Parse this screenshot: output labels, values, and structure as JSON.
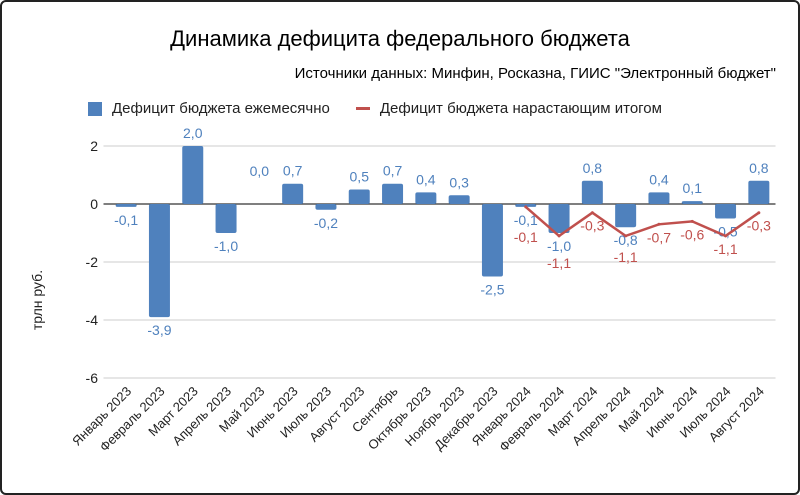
{
  "chart_data": {
    "type": "bar+line",
    "title": "Динамика дефицита федерального бюджета",
    "subtitle": "Источники данных: Минфин, Росказна, ГИИС \"Электронный бюджет\"",
    "ylabel": "трлн руб.",
    "ylim": [
      -6,
      2
    ],
    "yticks": [
      "2",
      "0",
      "-2",
      "-4",
      "-6"
    ],
    "ytick_values": [
      2,
      0,
      -2,
      -4,
      -6
    ],
    "grid": true,
    "legend_position": "top",
    "categories": [
      "Январь 2023",
      "Февраль 2023",
      "Март 2023",
      "Апрель 2023",
      "Май 2023",
      "Июнь 2023",
      "Июль 2023",
      "Август 2023",
      "Сентябрь",
      "Октябрь 2023",
      "Ноябрь 2023",
      "Декабрь 2023",
      "Январь 2024",
      "Февраль 2024",
      "Март 2024",
      "Апрель 2024",
      "Май 2024",
      "Июнь 2024",
      "Июль 2024",
      "Август 2024"
    ],
    "series": [
      {
        "name": "Дефицит бюджета ежемесячно",
        "type": "bar",
        "color": "#4f81bd",
        "values": [
          -0.1,
          -3.9,
          2.0,
          -1.0,
          0.0,
          0.7,
          -0.2,
          0.5,
          0.7,
          0.4,
          0.3,
          -2.5,
          -0.1,
          -1.0,
          0.8,
          -0.8,
          0.4,
          0.1,
          -0.5,
          0.8
        ],
        "labels": [
          "-0,1",
          "-3,9",
          "2,0",
          "-1,0",
          "0,0",
          "0,7",
          "-0,2",
          "0,5",
          "0,7",
          "0,4",
          "0,3",
          "-2,5",
          "-0,1",
          "-1,0",
          "0,8",
          "-0,8",
          "0,4",
          "0,1",
          "-0,5",
          "0,8"
        ]
      },
      {
        "name": "Дефицит бюджета нарастающим итогом",
        "type": "line",
        "color": "#c0504d",
        "values": [
          null,
          null,
          null,
          null,
          null,
          null,
          null,
          null,
          null,
          null,
          null,
          null,
          -0.1,
          -1.1,
          -0.3,
          -1.1,
          -0.7,
          -0.6,
          -1.1,
          -0.3
        ],
        "labels": [
          null,
          null,
          null,
          null,
          null,
          null,
          null,
          null,
          null,
          null,
          null,
          null,
          "-0,1",
          "-1,1",
          "-0,3",
          "-1,1",
          "-0,7",
          "-0,6",
          "-1,1",
          "-0,3"
        ]
      }
    ]
  }
}
